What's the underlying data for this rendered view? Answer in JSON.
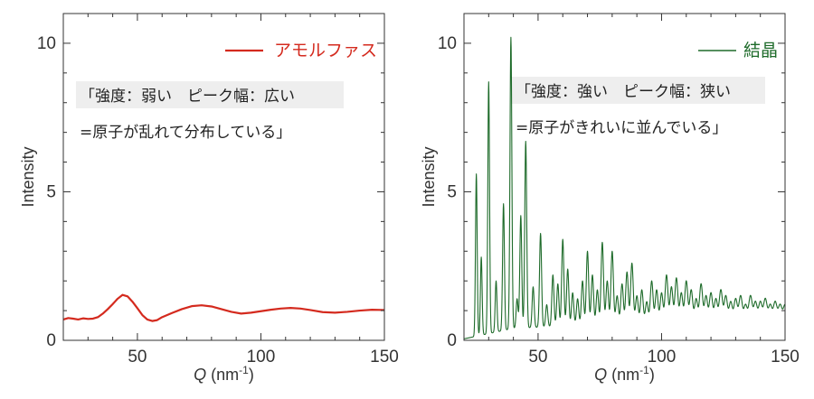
{
  "chart_data": [
    {
      "type": "line",
      "xlabel": "Q (nm⁻¹)",
      "xlabel_parts": {
        "var": "Q",
        "unit": " (nm",
        "sup": "-1",
        "close": ")"
      },
      "ylabel": "Intensity",
      "xlim": [
        20,
        150
      ],
      "ylim": [
        0,
        11
      ],
      "xticks": [
        50,
        100,
        150
      ],
      "yticks": [
        0,
        5,
        10
      ],
      "grid": false,
      "legend_position": "top-right",
      "color": "#d42a1e",
      "series": [
        {
          "name": "アモルファス",
          "x": [
            20,
            22,
            24,
            26,
            28,
            30,
            32,
            34,
            36,
            38,
            40,
            42,
            44,
            46,
            48,
            50,
            52,
            54,
            56,
            58,
            60,
            64,
            68,
            72,
            76,
            80,
            84,
            88,
            92,
            96,
            100,
            104,
            108,
            112,
            116,
            120,
            125,
            130,
            135,
            140,
            145,
            150
          ],
          "y": [
            0.7,
            0.75,
            0.73,
            0.7,
            0.74,
            0.72,
            0.73,
            0.78,
            0.9,
            1.05,
            1.22,
            1.4,
            1.53,
            1.48,
            1.3,
            1.08,
            0.85,
            0.7,
            0.65,
            0.68,
            0.78,
            0.92,
            1.05,
            1.15,
            1.18,
            1.14,
            1.05,
            0.96,
            0.9,
            0.93,
            0.98,
            1.03,
            1.07,
            1.09,
            1.07,
            1.02,
            0.95,
            0.93,
            0.96,
            1.0,
            1.03,
            1.02
          ]
        }
      ],
      "annotation": [
        "「強度：弱い　ピーク幅：広い",
        "=原子が乱れて分布している」"
      ]
    },
    {
      "type": "line",
      "xlabel": "Q (nm⁻¹)",
      "xlabel_parts": {
        "var": "Q",
        "unit": " (nm",
        "sup": "-1",
        "close": ")"
      },
      "ylabel": "Intensity",
      "xlim": [
        20,
        150
      ],
      "ylim": [
        0,
        11
      ],
      "xticks": [
        50,
        100,
        150
      ],
      "yticks": [
        0,
        5,
        10
      ],
      "grid": false,
      "legend_position": "top-right",
      "color": "#1e6b2a",
      "series": [
        {
          "name": "結晶",
          "baseline": [
            [
              20,
              0.05
            ],
            [
              40,
              0.4
            ],
            [
              60,
              0.48
            ],
            [
              80,
              0.55
            ],
            [
              100,
              0.6
            ],
            [
              120,
              0.62
            ],
            [
              150,
              0.65
            ]
          ],
          "peaks": [
            {
              "x": 25.0,
              "y": 5.6
            },
            {
              "x": 27.0,
              "y": 2.8
            },
            {
              "x": 30.0,
              "y": 8.7
            },
            {
              "x": 33.0,
              "y": 2.0
            },
            {
              "x": 36.0,
              "y": 4.6
            },
            {
              "x": 39.0,
              "y": 10.2
            },
            {
              "x": 41.5,
              "y": 1.4
            },
            {
              "x": 43.0,
              "y": 4.2
            },
            {
              "x": 45.0,
              "y": 6.7
            },
            {
              "x": 48.0,
              "y": 1.8
            },
            {
              "x": 51.0,
              "y": 3.6
            },
            {
              "x": 53.5,
              "y": 1.2
            },
            {
              "x": 56.0,
              "y": 2.2
            },
            {
              "x": 58.0,
              "y": 1.9
            },
            {
              "x": 60.0,
              "y": 3.4
            },
            {
              "x": 62.0,
              "y": 2.4
            },
            {
              "x": 64.0,
              "y": 1.6
            },
            {
              "x": 66.0,
              "y": 1.4
            },
            {
              "x": 68.0,
              "y": 2.0
            },
            {
              "x": 70.0,
              "y": 3.0
            },
            {
              "x": 72.0,
              "y": 2.2
            },
            {
              "x": 74.0,
              "y": 1.7
            },
            {
              "x": 76.0,
              "y": 3.3
            },
            {
              "x": 78.0,
              "y": 2.0
            },
            {
              "x": 80.0,
              "y": 3.0
            },
            {
              "x": 82.0,
              "y": 1.5
            },
            {
              "x": 84.0,
              "y": 1.9
            },
            {
              "x": 86.0,
              "y": 2.3
            },
            {
              "x": 88.0,
              "y": 2.6
            },
            {
              "x": 90.0,
              "y": 1.5
            },
            {
              "x": 92.0,
              "y": 1.7
            },
            {
              "x": 94.0,
              "y": 1.3
            },
            {
              "x": 96.0,
              "y": 2.0
            },
            {
              "x": 98.0,
              "y": 1.7
            },
            {
              "x": 100.0,
              "y": 1.6
            },
            {
              "x": 102.0,
              "y": 2.2
            },
            {
              "x": 104.0,
              "y": 1.8
            },
            {
              "x": 106.0,
              "y": 2.1
            },
            {
              "x": 108.0,
              "y": 1.6
            },
            {
              "x": 110.0,
              "y": 2.0
            },
            {
              "x": 112.0,
              "y": 1.7
            },
            {
              "x": 114.0,
              "y": 1.4
            },
            {
              "x": 116.0,
              "y": 1.9
            },
            {
              "x": 118.0,
              "y": 1.5
            },
            {
              "x": 120.0,
              "y": 1.6
            },
            {
              "x": 122.0,
              "y": 1.4
            },
            {
              "x": 124.0,
              "y": 1.7
            },
            {
              "x": 126.0,
              "y": 1.5
            },
            {
              "x": 128.0,
              "y": 1.3
            },
            {
              "x": 130.0,
              "y": 1.4
            },
            {
              "x": 132.0,
              "y": 1.5
            },
            {
              "x": 134.0,
              "y": 1.2
            },
            {
              "x": 136.0,
              "y": 1.5
            },
            {
              "x": 138.0,
              "y": 1.3
            },
            {
              "x": 140.0,
              "y": 1.3
            },
            {
              "x": 142.0,
              "y": 1.4
            },
            {
              "x": 144.0,
              "y": 1.2
            },
            {
              "x": 146.0,
              "y": 1.3
            },
            {
              "x": 148.0,
              "y": 1.2
            },
            {
              "x": 150.0,
              "y": 1.2
            }
          ]
        }
      ],
      "annotation": [
        "「強度：強い　ピーク幅：狭い",
        "=原子がきれいに並んでいる」"
      ]
    }
  ],
  "colors": {
    "amorphous": "#d42a1e",
    "crystal": "#1e6b2a",
    "axis": "#333333",
    "annotation_bg": "#eeeeee"
  }
}
